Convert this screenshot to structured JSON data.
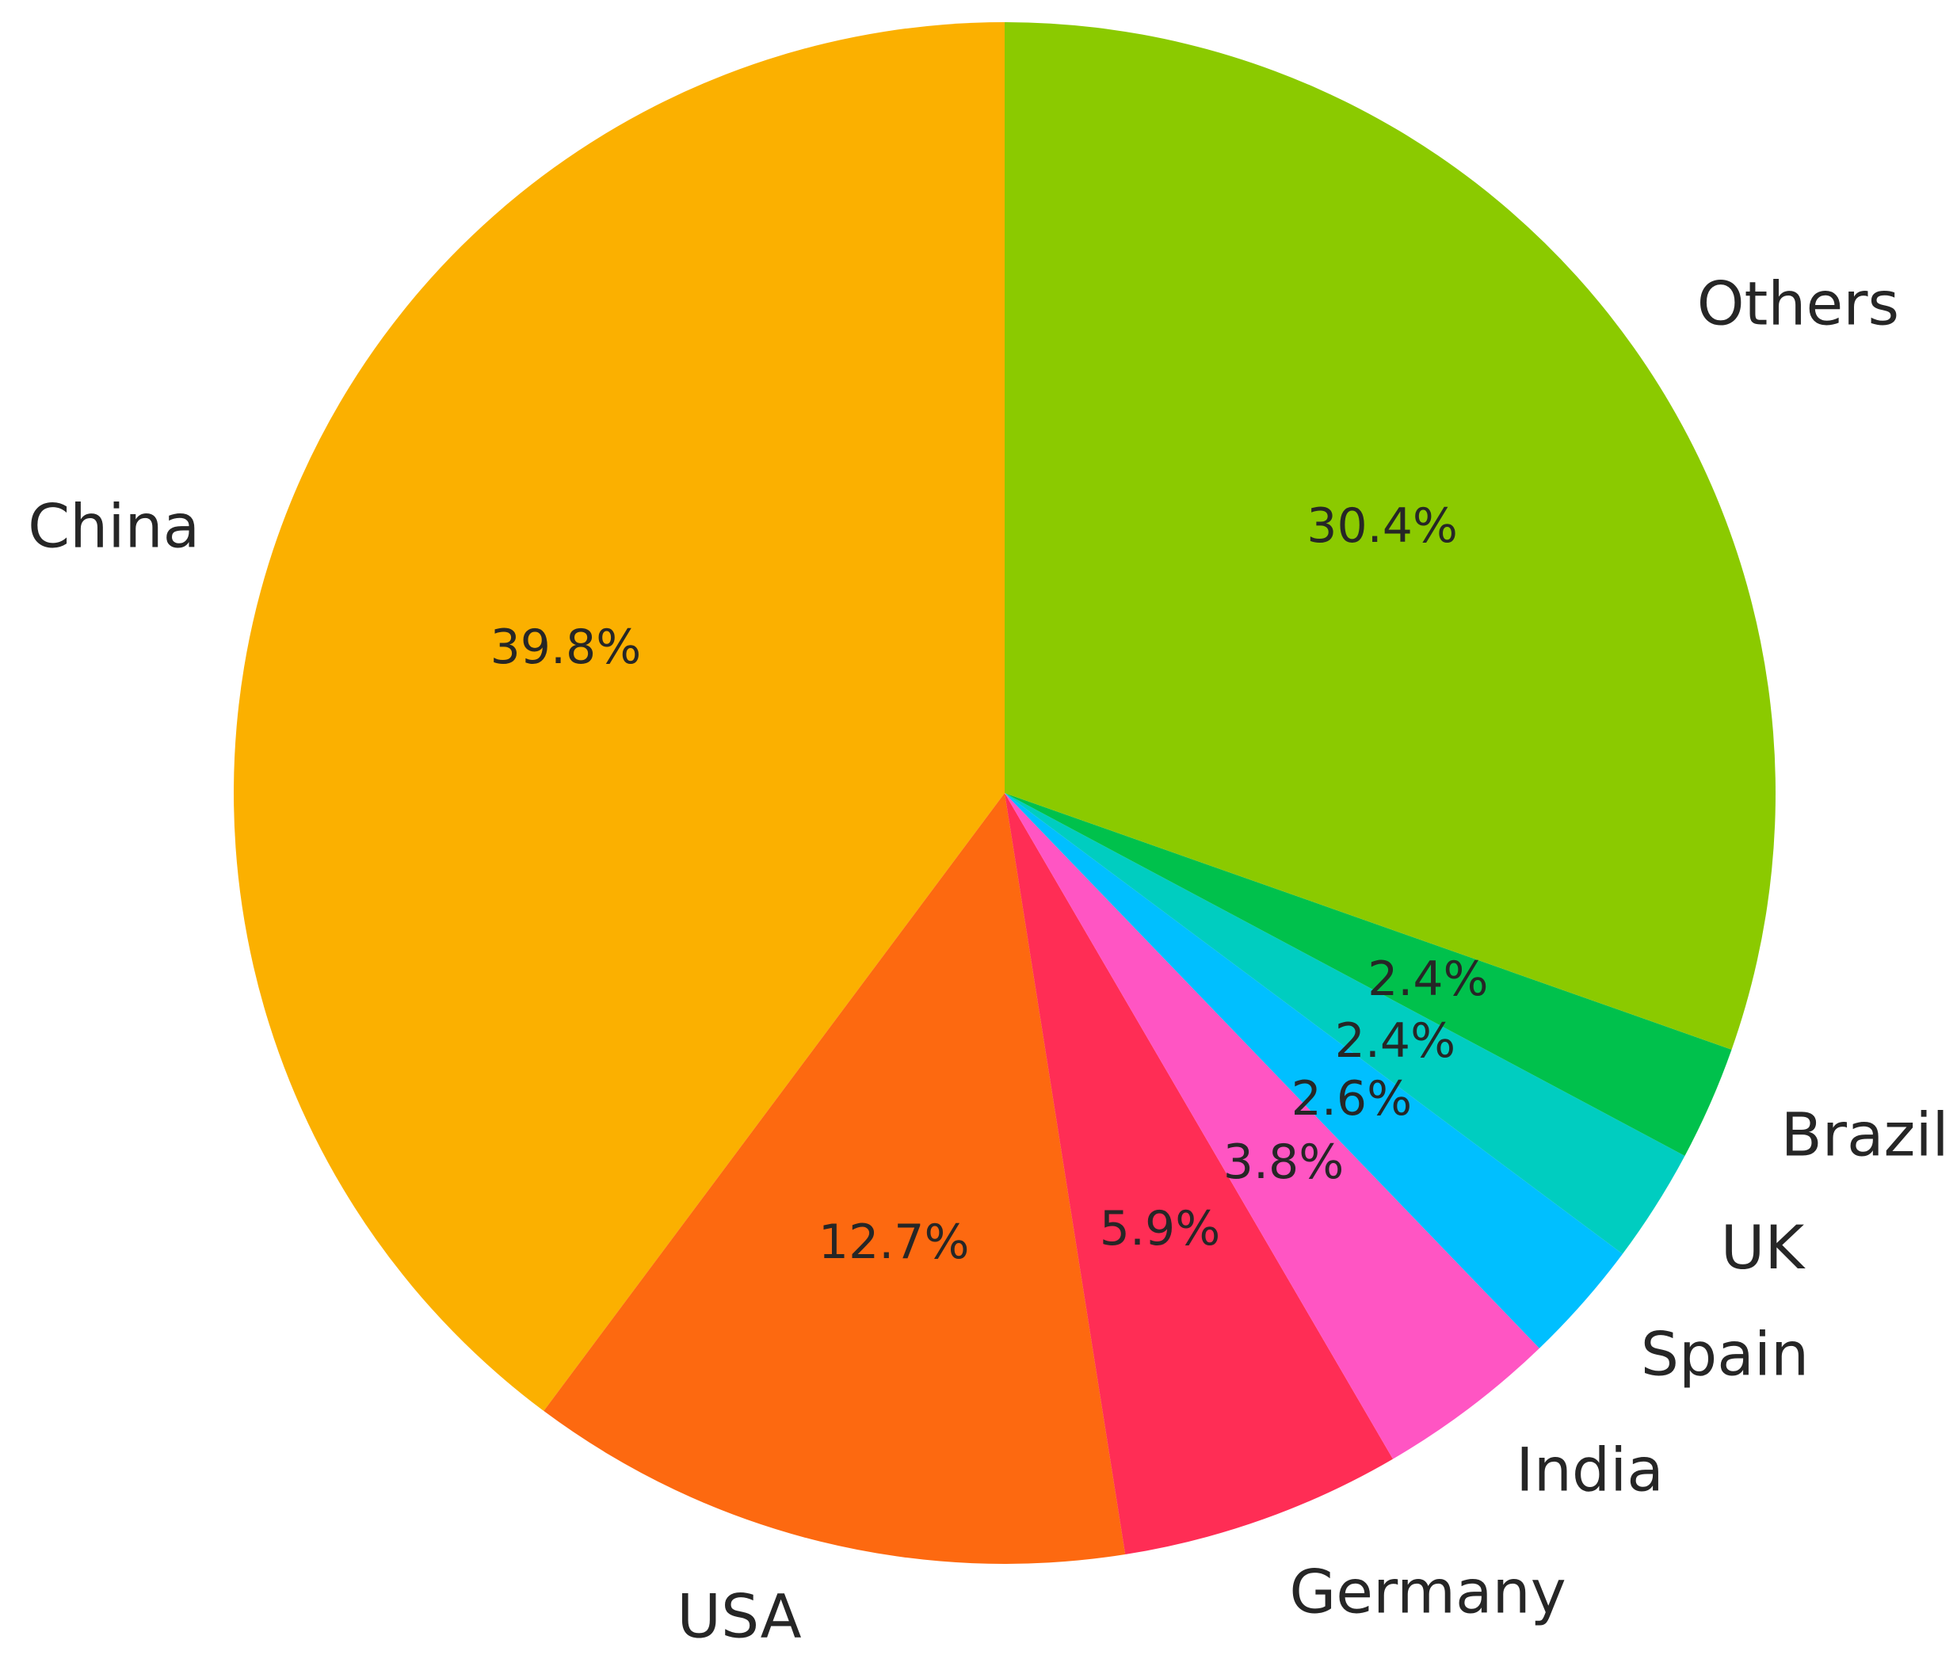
{
  "chart_data": {
    "type": "pie",
    "title": "",
    "categories": [
      "China",
      "USA",
      "Germany",
      "India",
      "Spain",
      "UK",
      "Brazil",
      "Others"
    ],
    "values": [
      39.8,
      12.7,
      5.9,
      3.8,
      2.6,
      2.4,
      2.4,
      30.4
    ],
    "value_labels": [
      "39.8%",
      "12.7%",
      "5.9%",
      "3.8%",
      "2.6%",
      "2.4%",
      "2.4%",
      "30.4%"
    ],
    "colors": [
      "#FBB000",
      "#FD6910",
      "#FF2D55",
      "#FF55C3",
      "#00BFFF",
      "#00CDC0",
      "#00C14C",
      "#8BCA00"
    ],
    "start_angle_deg": 90,
    "direction": "counterclockwise",
    "legend": "none"
  }
}
